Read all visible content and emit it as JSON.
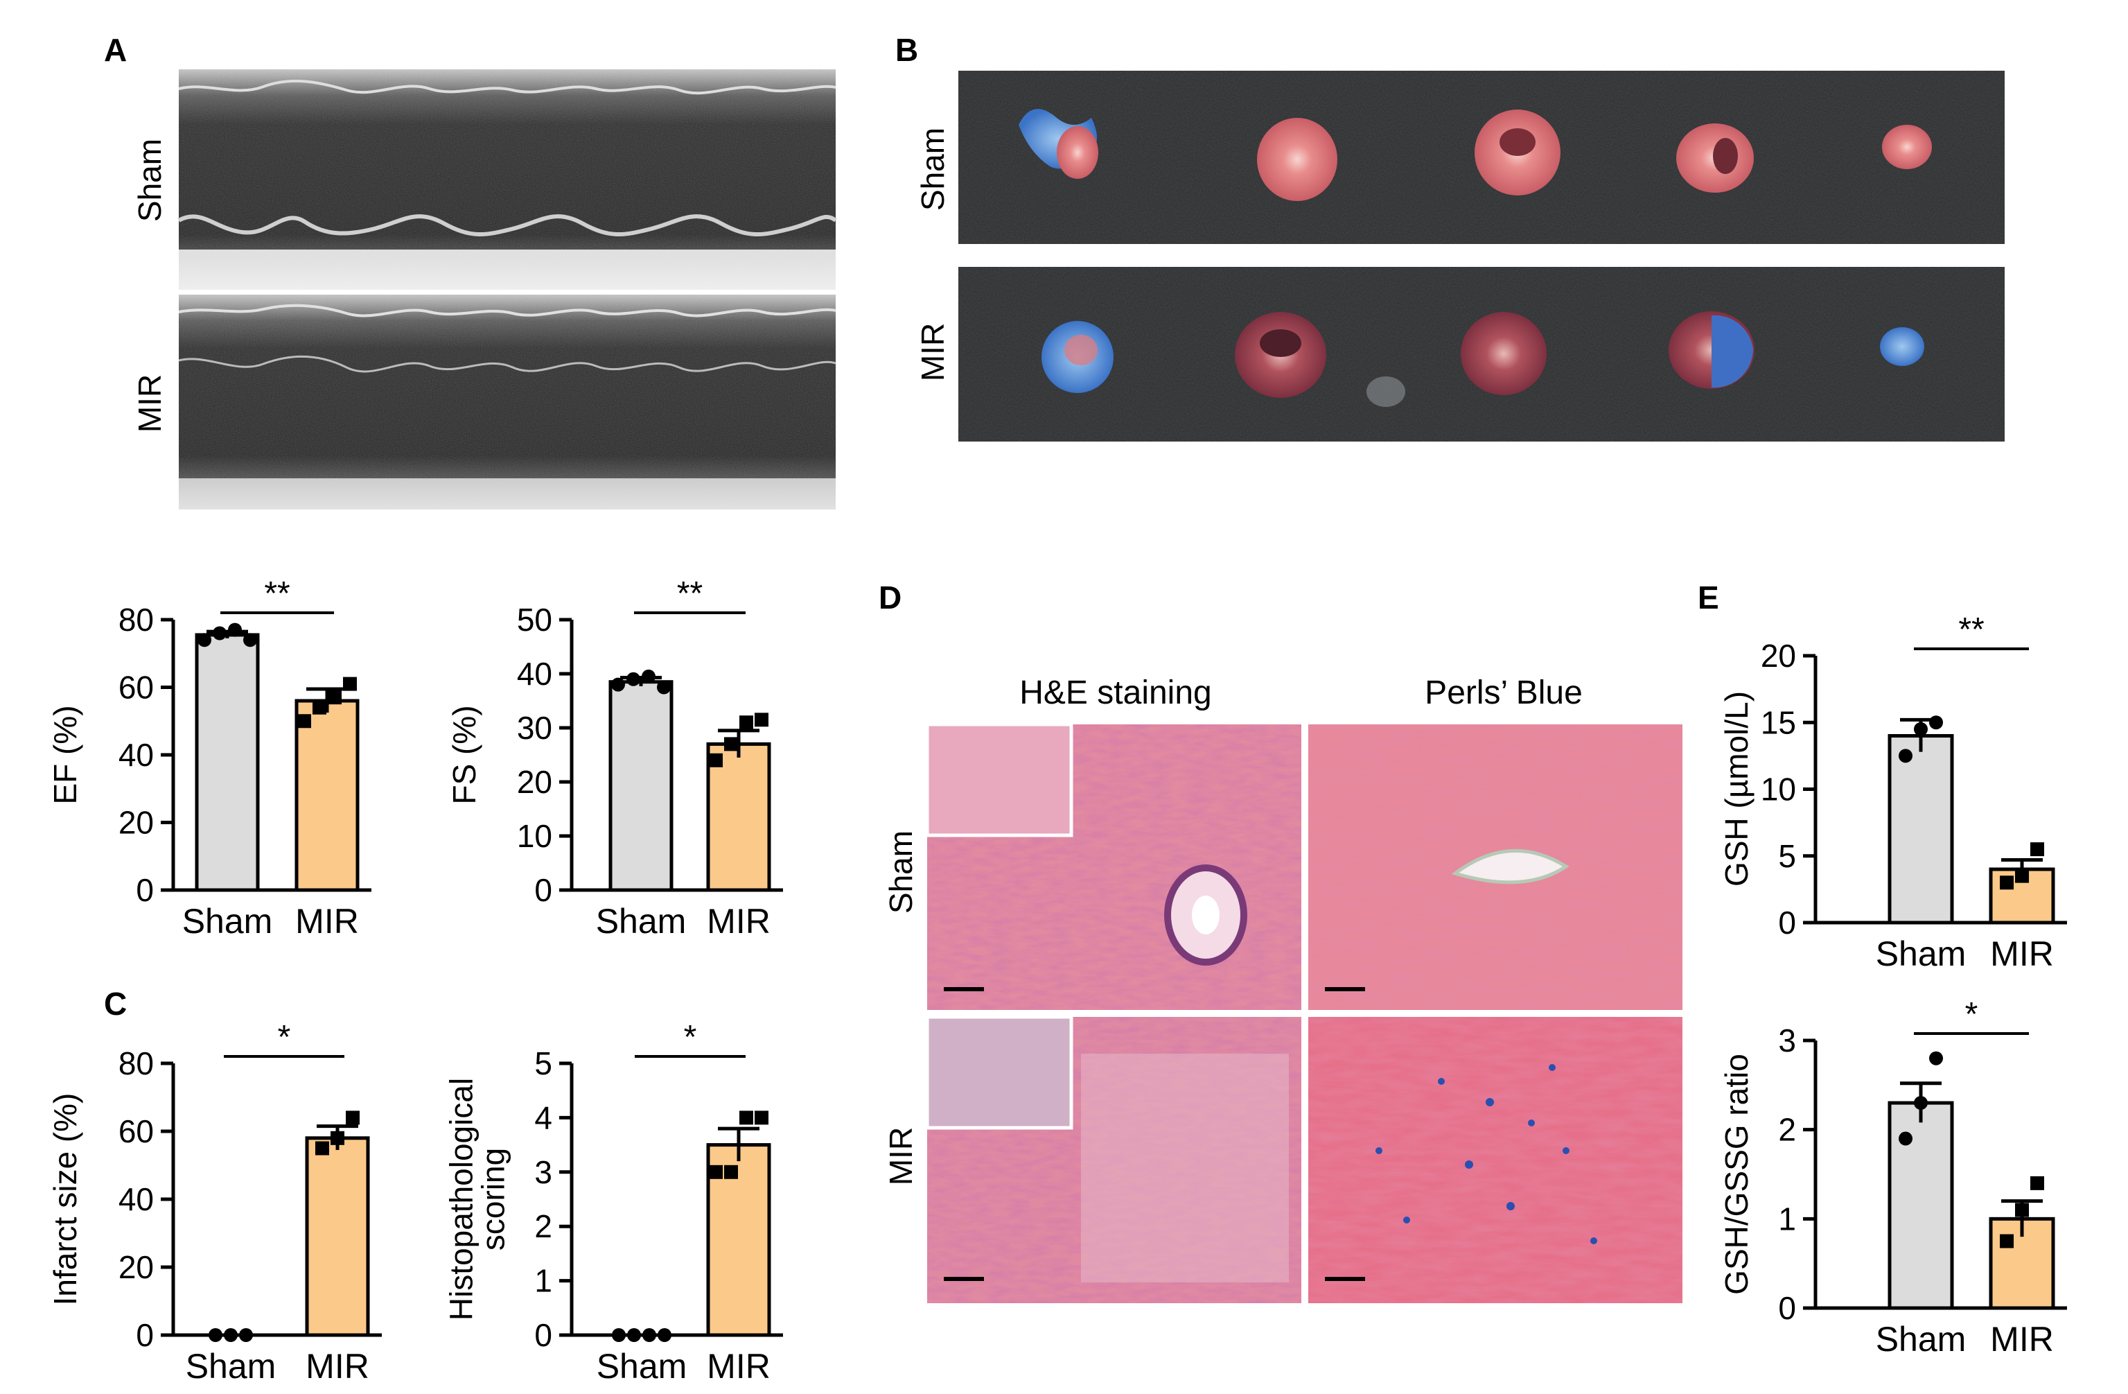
{
  "panels": {
    "A": {
      "letter": "A",
      "rows": [
        "Sham",
        "MIR"
      ]
    },
    "B": {
      "letter": "B",
      "rows": [
        "Sham",
        "MIR"
      ]
    },
    "C": {
      "letter": "C"
    },
    "D": {
      "letter": "D",
      "columns": [
        "H&E staining",
        "Perls’ Blue"
      ],
      "rows": [
        "Sham",
        "MIR"
      ]
    },
    "E": {
      "letter": "E"
    }
  },
  "colors": {
    "sham_bar": "#dcdcdc",
    "mir_bar": "#fbc98a",
    "axis": "#000000",
    "he_stain": "#e0889e",
    "perls_stain": "#e5788e",
    "echo_dark": "#1f1f1f",
    "slab": "#2b2d2f"
  },
  "icons": {
    "echo_image": "m-mode-echocardiogram",
    "heart_slices": "ttc-evans-blue-heart-slices",
    "histology": "stained-tissue-micrograph"
  },
  "chart_data": [
    {
      "id": "ef",
      "type": "bar",
      "categories": [
        "Sham",
        "MIR"
      ],
      "values": [
        75.5,
        56
      ],
      "errors": [
        1,
        3.5
      ],
      "points": [
        [
          74,
          76,
          77,
          74
        ],
        [
          50,
          54,
          57,
          61
        ]
      ],
      "markers": [
        "circle",
        "square"
      ],
      "ylabel": "EF (%)",
      "ylim": [
        0,
        80
      ],
      "ticks": [
        0,
        20,
        40,
        60,
        80
      ],
      "significance": "**"
    },
    {
      "id": "fs",
      "type": "bar",
      "categories": [
        "Sham",
        "MIR"
      ],
      "values": [
        38.5,
        27
      ],
      "errors": [
        0.8,
        2.5
      ],
      "points": [
        [
          38,
          39,
          39.5,
          37.5
        ],
        [
          24,
          27,
          31,
          31.5
        ]
      ],
      "markers": [
        "circle",
        "square"
      ],
      "ylabel": "FS (%)",
      "ylim": [
        0,
        50
      ],
      "ticks": [
        0,
        10,
        20,
        30,
        40,
        50
      ],
      "significance": "**"
    },
    {
      "id": "infarct",
      "type": "bar",
      "categories": [
        "Sham",
        "MIR"
      ],
      "values": [
        0,
        58
      ],
      "errors": [
        0,
        3.5
      ],
      "points": [
        [
          0,
          0,
          0
        ],
        [
          55,
          58,
          64
        ]
      ],
      "markers": [
        "circle",
        "square"
      ],
      "ylabel": "Infarct size (%)",
      "ylim": [
        0,
        80
      ],
      "ticks": [
        0,
        20,
        40,
        60,
        80
      ],
      "significance": "*"
    },
    {
      "id": "histo",
      "type": "bar",
      "categories": [
        "Sham",
        "MIR"
      ],
      "values": [
        0,
        3.5
      ],
      "errors": [
        0,
        0.3
      ],
      "points": [
        [
          0,
          0,
          0,
          0
        ],
        [
          3,
          3,
          4,
          4
        ]
      ],
      "markers": [
        "circle",
        "square"
      ],
      "ylabel": "Histopathological scoring",
      "ylim": [
        0,
        5
      ],
      "ticks": [
        0,
        1,
        2,
        3,
        4,
        5
      ],
      "significance": "*"
    },
    {
      "id": "gsh",
      "type": "bar",
      "categories": [
        "Sham",
        "MIR"
      ],
      "values": [
        14,
        4
      ],
      "errors": [
        1.2,
        0.7
      ],
      "points": [
        [
          12.5,
          14.5,
          15
        ],
        [
          3,
          3.5,
          5.5
        ]
      ],
      "markers": [
        "circle",
        "square"
      ],
      "ylabel": "GSH (µmol/L)",
      "ylim": [
        0,
        20
      ],
      "ticks": [
        0,
        5,
        10,
        15,
        20
      ],
      "significance": "**"
    },
    {
      "id": "ratio",
      "type": "bar",
      "categories": [
        "Sham",
        "MIR"
      ],
      "values": [
        2.3,
        1.0
      ],
      "errors": [
        0.22,
        0.2
      ],
      "points": [
        [
          1.9,
          2.3,
          2.8
        ],
        [
          0.75,
          1.1,
          1.4
        ]
      ],
      "markers": [
        "circle",
        "square"
      ],
      "ylabel": "GSH/GSSG ratio",
      "ylim": [
        0,
        3
      ],
      "ticks": [
        0,
        1,
        2,
        3
      ],
      "significance": "*"
    }
  ]
}
